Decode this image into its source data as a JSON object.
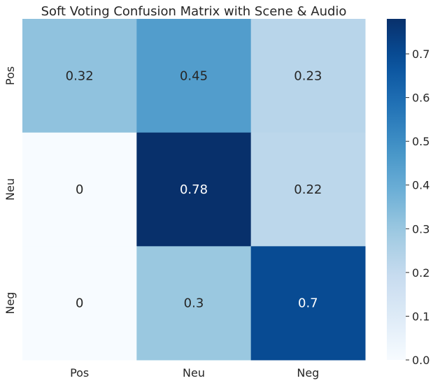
{
  "chart_data": {
    "type": "heatmap",
    "title": "Soft Voting Confusion Matrix with Scene & Audio",
    "x_categories": [
      "Pos",
      "Neu",
      "Neg"
    ],
    "y_categories": [
      "Pos",
      "Neu",
      "Neg"
    ],
    "values": [
      [
        0.32,
        0.45,
        0.23
      ],
      [
        0,
        0.78,
        0.22
      ],
      [
        0,
        0.3,
        0.7
      ]
    ],
    "labels": [
      [
        "0.32",
        "0.45",
        "0.23"
      ],
      [
        "0",
        "0.78",
        "0.22"
      ],
      [
        "0",
        "0.3",
        "0.7"
      ]
    ],
    "colormap": "Blues",
    "colorbar": {
      "vmin": 0,
      "vmax": 0.78,
      "ticks": [
        0.0,
        0.1,
        0.2,
        0.3,
        0.4,
        0.5,
        0.6,
        0.7
      ],
      "tick_labels": [
        "0.0",
        "0.1",
        "0.2",
        "0.3",
        "0.4",
        "0.5",
        "0.6",
        "0.7"
      ]
    }
  }
}
